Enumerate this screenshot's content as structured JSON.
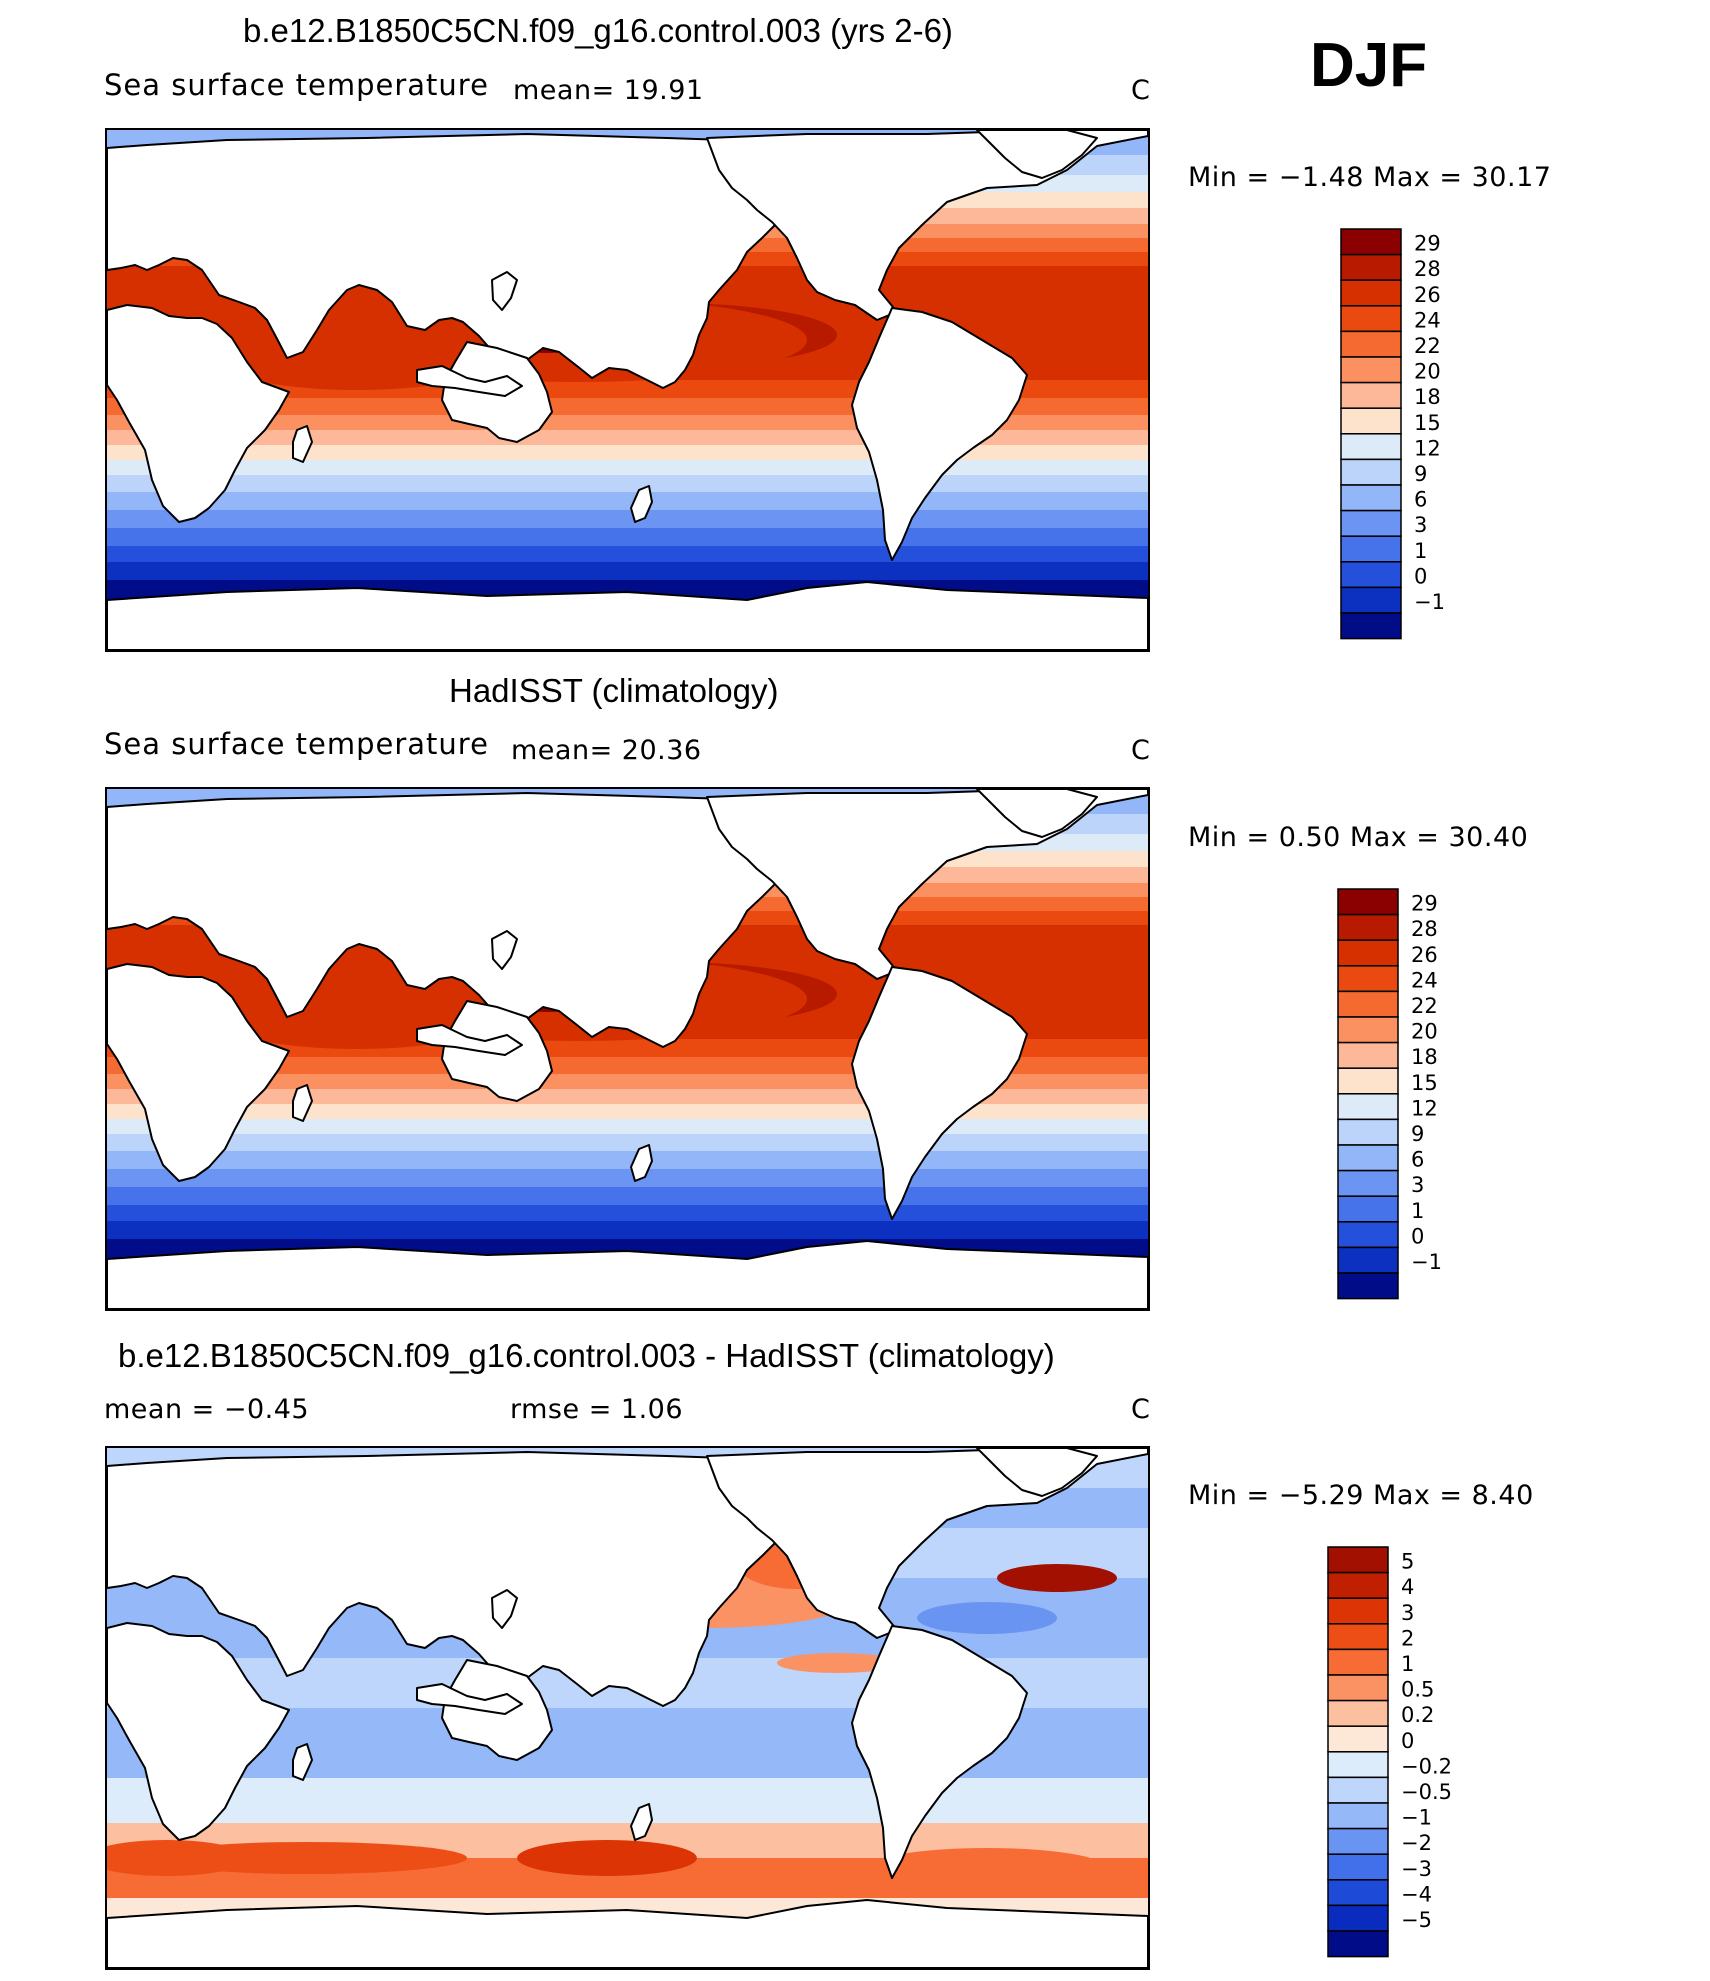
{
  "season": "DJF",
  "panels": [
    {
      "id": "model",
      "title": "b.e12.B1850C5CN.f09_g16.control.003 (yrs 2-6)",
      "subtitle": "Sea surface temperature",
      "stat1": "mean=   19.91",
      "stat2": "",
      "units": "C",
      "minmax": "Min =   −1.48  Max =   30.17",
      "min_value": -1.48,
      "max_value": 30.17,
      "palette": "sst",
      "colorbar": {
        "labels": [
          "29",
          "28",
          "26",
          "24",
          "22",
          "20",
          "18",
          "15",
          "12",
          "9",
          "6",
          "3",
          "1",
          "0",
          "−1"
        ],
        "colors": [
          "#8b0000",
          "#b81a00",
          "#d63000",
          "#ea4a10",
          "#f56a30",
          "#fb9060",
          "#fcb898",
          "#fde2cc",
          "#ddebf8",
          "#bcd4fa",
          "#93b6f8",
          "#6c94f2",
          "#4672ea",
          "#2450dc",
          "#0c30c0",
          "#000c88"
        ]
      }
    },
    {
      "id": "obs",
      "title": "HadISST (climatology)",
      "subtitle": "Sea surface temperature",
      "stat1": "mean=   20.36",
      "stat2": "",
      "units": "C",
      "minmax": "Min =    0.50  Max =   30.40",
      "min_value": 0.5,
      "max_value": 30.4,
      "palette": "sst",
      "colorbar": {
        "labels": [
          "29",
          "28",
          "26",
          "24",
          "22",
          "20",
          "18",
          "15",
          "12",
          "9",
          "6",
          "3",
          "1",
          "0",
          "−1"
        ],
        "colors": [
          "#8b0000",
          "#b81a00",
          "#d63000",
          "#ea4a10",
          "#f56a30",
          "#fb9060",
          "#fcb898",
          "#fde2cc",
          "#ddebf8",
          "#bcd4fa",
          "#93b6f8",
          "#6c94f2",
          "#4672ea",
          "#2450dc",
          "#0c30c0",
          "#000c88"
        ]
      }
    },
    {
      "id": "diff",
      "title": "b.e12.B1850C5CN.f09_g16.control.003 - HadISST (climatology)",
      "subtitle": "",
      "stat1": "mean =   −0.45",
      "stat2": "rmse =    1.06",
      "units": "C",
      "minmax": "Min =   −5.29  Max =    8.40",
      "min_value": -5.29,
      "max_value": 8.4,
      "palette": "diff",
      "colorbar": {
        "labels": [
          "5",
          "4",
          "3",
          "2",
          "1",
          "0.5",
          "0.2",
          "0",
          "−0.2",
          "−0.5",
          "−1",
          "−2",
          "−3",
          "−4",
          "−5"
        ],
        "colors": [
          "#a11000",
          "#c02000",
          "#dc3404",
          "#ec4e16",
          "#f66c34",
          "#fb9264",
          "#fcbfa0",
          "#fde8d8",
          "#dcecfa",
          "#bed6fb",
          "#94b8f8",
          "#6a94f2",
          "#4270ea",
          "#1e4ad8",
          "#0a2cbe",
          "#000c88"
        ]
      }
    }
  ]
}
